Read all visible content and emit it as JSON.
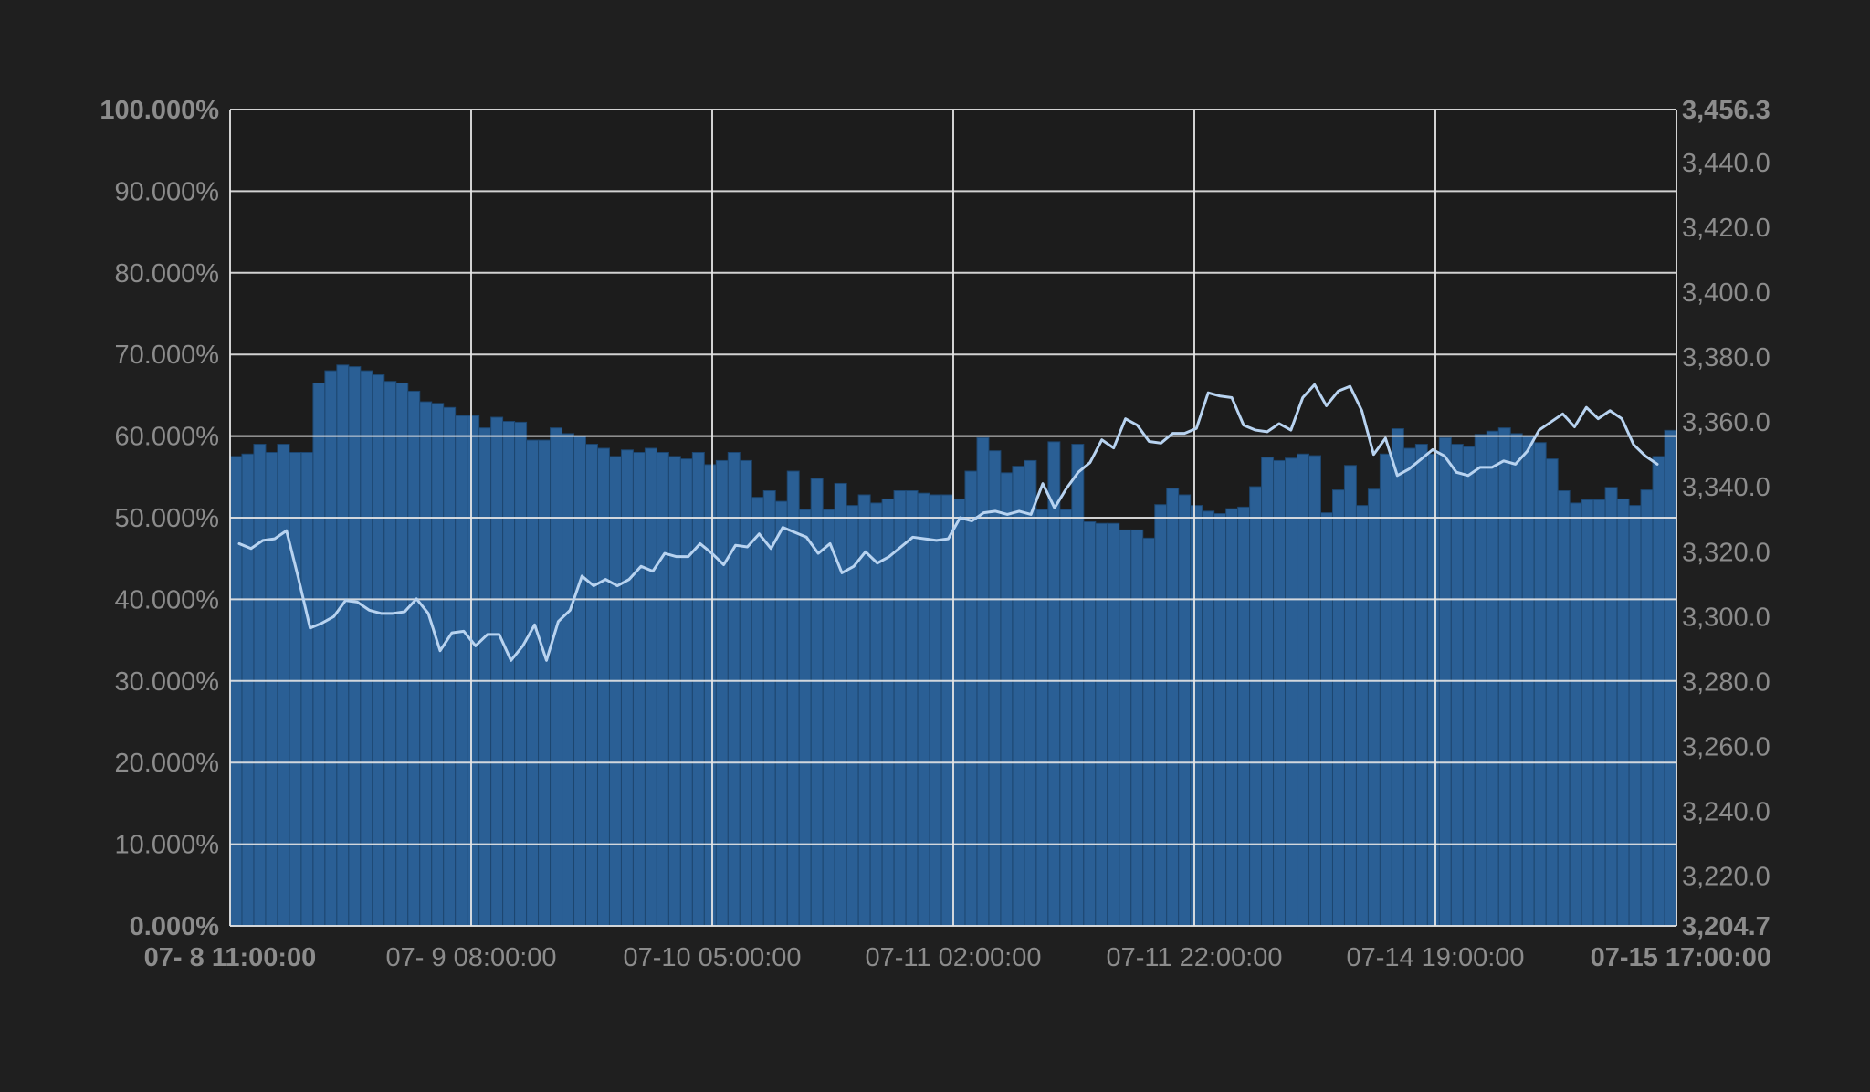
{
  "colors": {
    "background": "#1f1f1f",
    "plot_background": "#1c1c1c",
    "grid": "#e6e6e6",
    "bar_fill": "#2a5f95",
    "bar_stroke": "#1d466f",
    "line": "#b8d3f0",
    "tick_text": "#8c8c8c"
  },
  "chart_data": {
    "type": "bar",
    "title": "",
    "xlabel": "",
    "ylabel": "",
    "grid": true,
    "legend": "none",
    "x_ticks": [
      {
        "label": "07- 8 11:00:00",
        "bold": true
      },
      {
        "label": "07- 9 08:00:00",
        "bold": false
      },
      {
        "label": "07-10 05:00:00",
        "bold": false
      },
      {
        "label": "07-11 02:00:00",
        "bold": false
      },
      {
        "label": "07-11 22:00:00",
        "bold": false
      },
      {
        "label": "07-14 19:00:00",
        "bold": false
      },
      {
        "label": "07-15 17:00:00",
        "bold": true
      }
    ],
    "y_left": {
      "ylim": [
        0,
        100
      ],
      "ticks": [
        "0.000%",
        "10.000%",
        "20.000%",
        "30.000%",
        "40.000%",
        "50.000%",
        "60.000%",
        "70.000%",
        "80.000%",
        "90.000%",
        "100.000%"
      ],
      "bold_ticks": [
        "0.000%",
        "100.000%"
      ]
    },
    "y_right": {
      "ylim": [
        3204.7,
        3456.3
      ],
      "ticks": [
        {
          "value": 3204.7,
          "label": "3,204.7",
          "bold": true
        },
        {
          "value": 3220.0,
          "label": "3,220.0",
          "bold": false
        },
        {
          "value": 3240.0,
          "label": "3,240.0",
          "bold": false
        },
        {
          "value": 3260.0,
          "label": "3,260.0",
          "bold": false
        },
        {
          "value": 3280.0,
          "label": "3,280.0",
          "bold": false
        },
        {
          "value": 3300.0,
          "label": "3,300.0",
          "bold": false
        },
        {
          "value": 3320.0,
          "label": "3,320.0",
          "bold": false
        },
        {
          "value": 3340.0,
          "label": "3,340.0",
          "bold": false
        },
        {
          "value": 3360.0,
          "label": "3,360.0",
          "bold": false
        },
        {
          "value": 3380.0,
          "label": "3,380.0",
          "bold": false
        },
        {
          "value": 3400.0,
          "label": "3,400.0",
          "bold": false
        },
        {
          "value": 3420.0,
          "label": "3,420.0",
          "bold": false
        },
        {
          "value": 3440.0,
          "label": "3,440.0",
          "bold": false
        },
        {
          "value": 3456.3,
          "label": "3,456.3",
          "bold": true
        }
      ]
    },
    "series": [
      {
        "type": "bar",
        "axis": "left",
        "values": [
          57.5,
          57.8,
          59.0,
          58.0,
          59.0,
          58.0,
          58.0,
          66.5,
          68.0,
          68.7,
          68.5,
          68.0,
          67.5,
          66.7,
          66.5,
          65.5,
          64.2,
          64.0,
          63.5,
          62.5,
          62.5,
          61.0,
          62.3,
          61.8,
          61.7,
          59.5,
          59.5,
          61.0,
          60.3,
          60.0,
          59.0,
          58.5,
          57.5,
          58.3,
          58.0,
          58.5,
          58.0,
          57.5,
          57.2,
          58.0,
          56.5,
          57.0,
          58.0,
          57.0,
          52.5,
          53.3,
          52.0,
          55.7,
          51.0,
          54.8,
          51.0,
          54.2,
          51.5,
          52.8,
          51.8,
          52.3,
          53.3,
          53.3,
          53.0,
          52.8,
          52.8,
          52.3,
          55.7,
          59.8,
          58.2,
          55.5,
          56.3,
          57.0,
          51.0,
          59.3,
          51.0,
          59.0,
          49.5,
          49.3,
          49.3,
          48.5,
          48.5,
          47.5,
          51.6,
          53.6,
          52.8,
          51.5,
          50.8,
          50.5,
          51.1,
          51.3,
          53.8,
          57.4,
          57.0,
          57.3,
          57.8,
          57.6,
          50.6,
          53.4,
          56.4,
          51.5,
          53.5,
          57.8,
          60.9,
          58.5,
          59.0,
          57.8,
          59.8,
          59.0,
          58.7,
          60.2,
          60.6,
          61.0,
          60.3,
          60.0,
          59.2,
          57.2,
          53.3,
          51.8,
          52.2,
          52.2,
          53.7,
          52.3,
          51.5,
          53.4,
          57.5,
          60.7
        ]
      },
      {
        "type": "line",
        "axis": "right",
        "values": [
          3322.5,
          3321.0,
          3323.5,
          3324.0,
          3326.5,
          3312.0,
          3296.5,
          3298.0,
          3300.0,
          3305.0,
          3304.5,
          3302.0,
          3301.0,
          3301.0,
          3301.5,
          3305.5,
          3301.0,
          3289.5,
          3295.0,
          3295.5,
          3291.0,
          3294.5,
          3294.5,
          3286.5,
          3291.0,
          3297.5,
          3286.5,
          3298.5,
          3302.0,
          3312.5,
          3309.5,
          3311.5,
          3309.5,
          3311.5,
          3315.5,
          3314.0,
          3319.5,
          3318.5,
          3318.5,
          3322.5,
          3319.5,
          3316.0,
          3322.0,
          3321.5,
          3325.5,
          3321.0,
          3327.5,
          3326.0,
          3324.5,
          3319.5,
          3322.5,
          3313.5,
          3315.5,
          3320.0,
          3316.5,
          3318.5,
          3321.5,
          3324.5,
          3324.0,
          3323.5,
          3324.0,
          3330.5,
          3329.5,
          3332.0,
          3332.5,
          3331.5,
          3332.5,
          3331.5,
          3341.0,
          3333.5,
          3339.5,
          3344.5,
          3347.5,
          3354.5,
          3352.0,
          3361.0,
          3359.0,
          3354.0,
          3353.5,
          3356.5,
          3356.5,
          3358.0,
          3369.0,
          3368.0,
          3367.5,
          3359.0,
          3357.5,
          3357.0,
          3359.5,
          3357.5,
          3367.5,
          3371.5,
          3365.0,
          3369.5,
          3371.0,
          3363.5,
          3350.0,
          3355.0,
          3343.5,
          3345.5,
          3348.5,
          3351.5,
          3349.5,
          3344.5,
          3343.5,
          3346.0,
          3346.0,
          3348.0,
          3347.0,
          3351.0,
          3357.5,
          3360.0,
          3362.5,
          3358.5,
          3364.5,
          3361.0,
          3363.5,
          3361.0,
          3353.0,
          3349.5,
          3347.0
        ]
      }
    ]
  }
}
